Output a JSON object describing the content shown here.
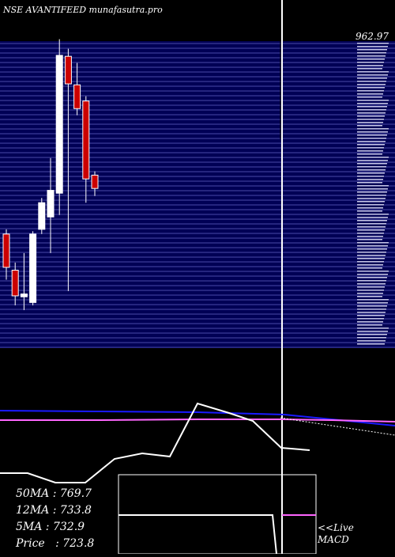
{
  "header": {
    "title": "NSE AVANTIFEED munafasutra.pro"
  },
  "price_axis": {
    "top_label": "962.97",
    "scale_top": 962.97,
    "scale_bottom": 640
  },
  "chart_data": {
    "type": "candlestick",
    "title": "NSE AVANTIFEED munafasutra.pro",
    "ylim": [
      640,
      962.97
    ],
    "candles": [
      {
        "open": 760,
        "close": 725,
        "high": 765,
        "low": 712,
        "color": "red"
      },
      {
        "open": 722,
        "close": 695,
        "high": 730,
        "low": 685,
        "color": "red"
      },
      {
        "open": 697,
        "close": 694,
        "high": 740,
        "low": 680,
        "color": "white"
      },
      {
        "open": 688,
        "close": 760,
        "high": 763,
        "low": 685,
        "color": "white"
      },
      {
        "open": 765,
        "close": 793,
        "high": 798,
        "low": 760,
        "color": "white"
      },
      {
        "open": 778,
        "close": 806,
        "high": 840,
        "low": 740,
        "color": "white"
      },
      {
        "open": 803,
        "close": 948,
        "high": 965,
        "low": 780,
        "color": "white"
      },
      {
        "open": 947,
        "close": 918,
        "high": 955,
        "low": 700,
        "color": "red"
      },
      {
        "open": 917,
        "close": 892,
        "high": 940,
        "low": 885,
        "color": "red"
      },
      {
        "open": 900,
        "close": 818,
        "high": 905,
        "low": 793,
        "color": "red"
      },
      {
        "open": 822,
        "close": 808,
        "high": 826,
        "low": 800,
        "color": "red"
      }
    ],
    "moving_averages": {
      "ma50": 769.7,
      "ma12": 733.8,
      "ma5": 732.9,
      "price": 723.8,
      "colors": {
        "ma50": "#1a1aff",
        "ma12": "#ff66ff",
        "ma5": "#ffffff"
      }
    }
  },
  "indicators": {
    "ma_labels": [
      {
        "label": "50MA",
        "value": "769.7",
        "text": "50MA : 769.7"
      },
      {
        "label": "12MA",
        "value": "733.8",
        "text": "12MA : 733.8"
      },
      {
        "label": "5MA",
        "value": "732.9",
        "text": "5MA : 732.9"
      },
      {
        "label": "Price",
        "value": "723.8",
        "text": "Price   : 723.8"
      }
    ],
    "macd": {
      "line1": "<<Live",
      "line2": "MACD"
    }
  },
  "colors": {
    "background": "#000000",
    "grid_panel": "#000055",
    "grid_line": "#4a4aa8",
    "candle_up": "#ffffff",
    "candle_down": "#cc0000",
    "accent_blue": "#1a1aff",
    "accent_pink": "#ff66ff"
  }
}
